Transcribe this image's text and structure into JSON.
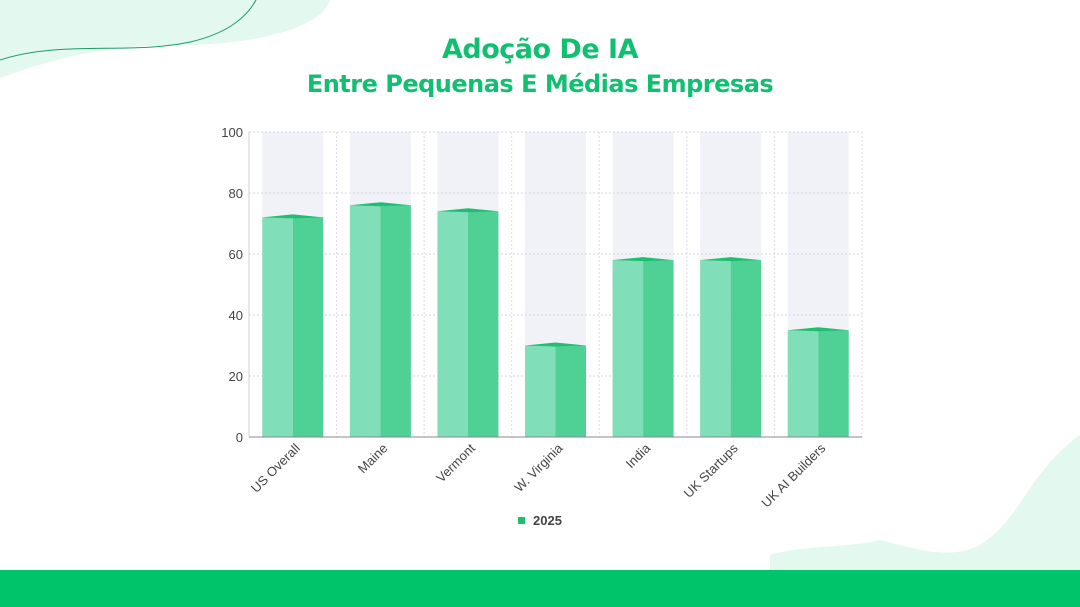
{
  "title_line1": "Adoção De IA",
  "title_line2": "Entre Pequenas E Médias Empresas",
  "colors": {
    "title": "#10c070",
    "bar_front": "#80dfb9",
    "bar_side": "#4fd196",
    "bar_top": "#1fbf72",
    "background_column": "#f1f2f7",
    "footer": "#00c46a",
    "decoration": "#e3f8ef"
  },
  "chart_data": {
    "type": "bar",
    "categories": [
      "US Overall",
      "Maine",
      "Vermont",
      "W. Virginia",
      "India",
      "UK Startups",
      "UK AI Builders"
    ],
    "series": [
      {
        "name": "2025",
        "values": [
          72,
          76,
          74,
          30,
          58,
          58,
          35
        ]
      }
    ],
    "ylim": [
      0,
      100
    ],
    "yticks": [
      0,
      20,
      40,
      60,
      80,
      100
    ],
    "grid": true,
    "legend_position": "bottom"
  }
}
